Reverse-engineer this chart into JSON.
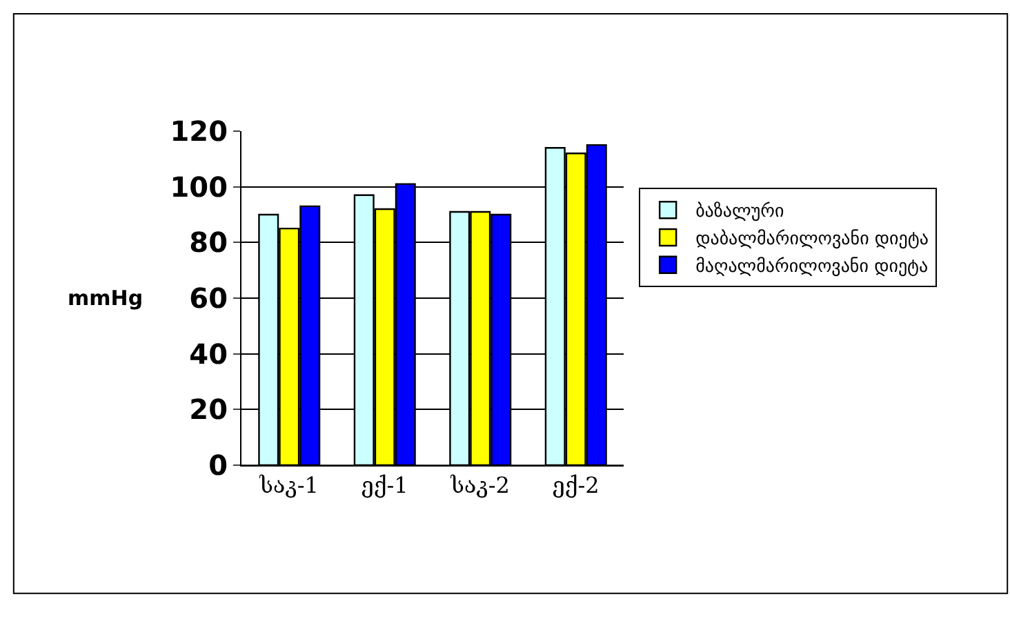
{
  "chart_data": {
    "type": "bar",
    "ylabel": "mmHg",
    "categories": [
      "საკ-1",
      "ექ-1",
      "საკ-2",
      "ექ-2"
    ],
    "series": [
      {
        "name": "ბაზალური",
        "color": "#ccffff",
        "values": [
          90,
          97,
          91,
          114
        ]
      },
      {
        "name": "დაბალმარილოვანი დიეტა",
        "color": "#ffff00",
        "values": [
          85,
          92,
          91,
          112
        ]
      },
      {
        "name": "მაღალმარილოვანი დიეტა",
        "color": "#0000ff",
        "values": [
          93,
          101,
          90,
          115
        ]
      }
    ],
    "ylim": [
      0,
      120
    ],
    "yticks": [
      0,
      20,
      40,
      60,
      80,
      100,
      120
    ],
    "grid": "y",
    "legend": "right"
  }
}
